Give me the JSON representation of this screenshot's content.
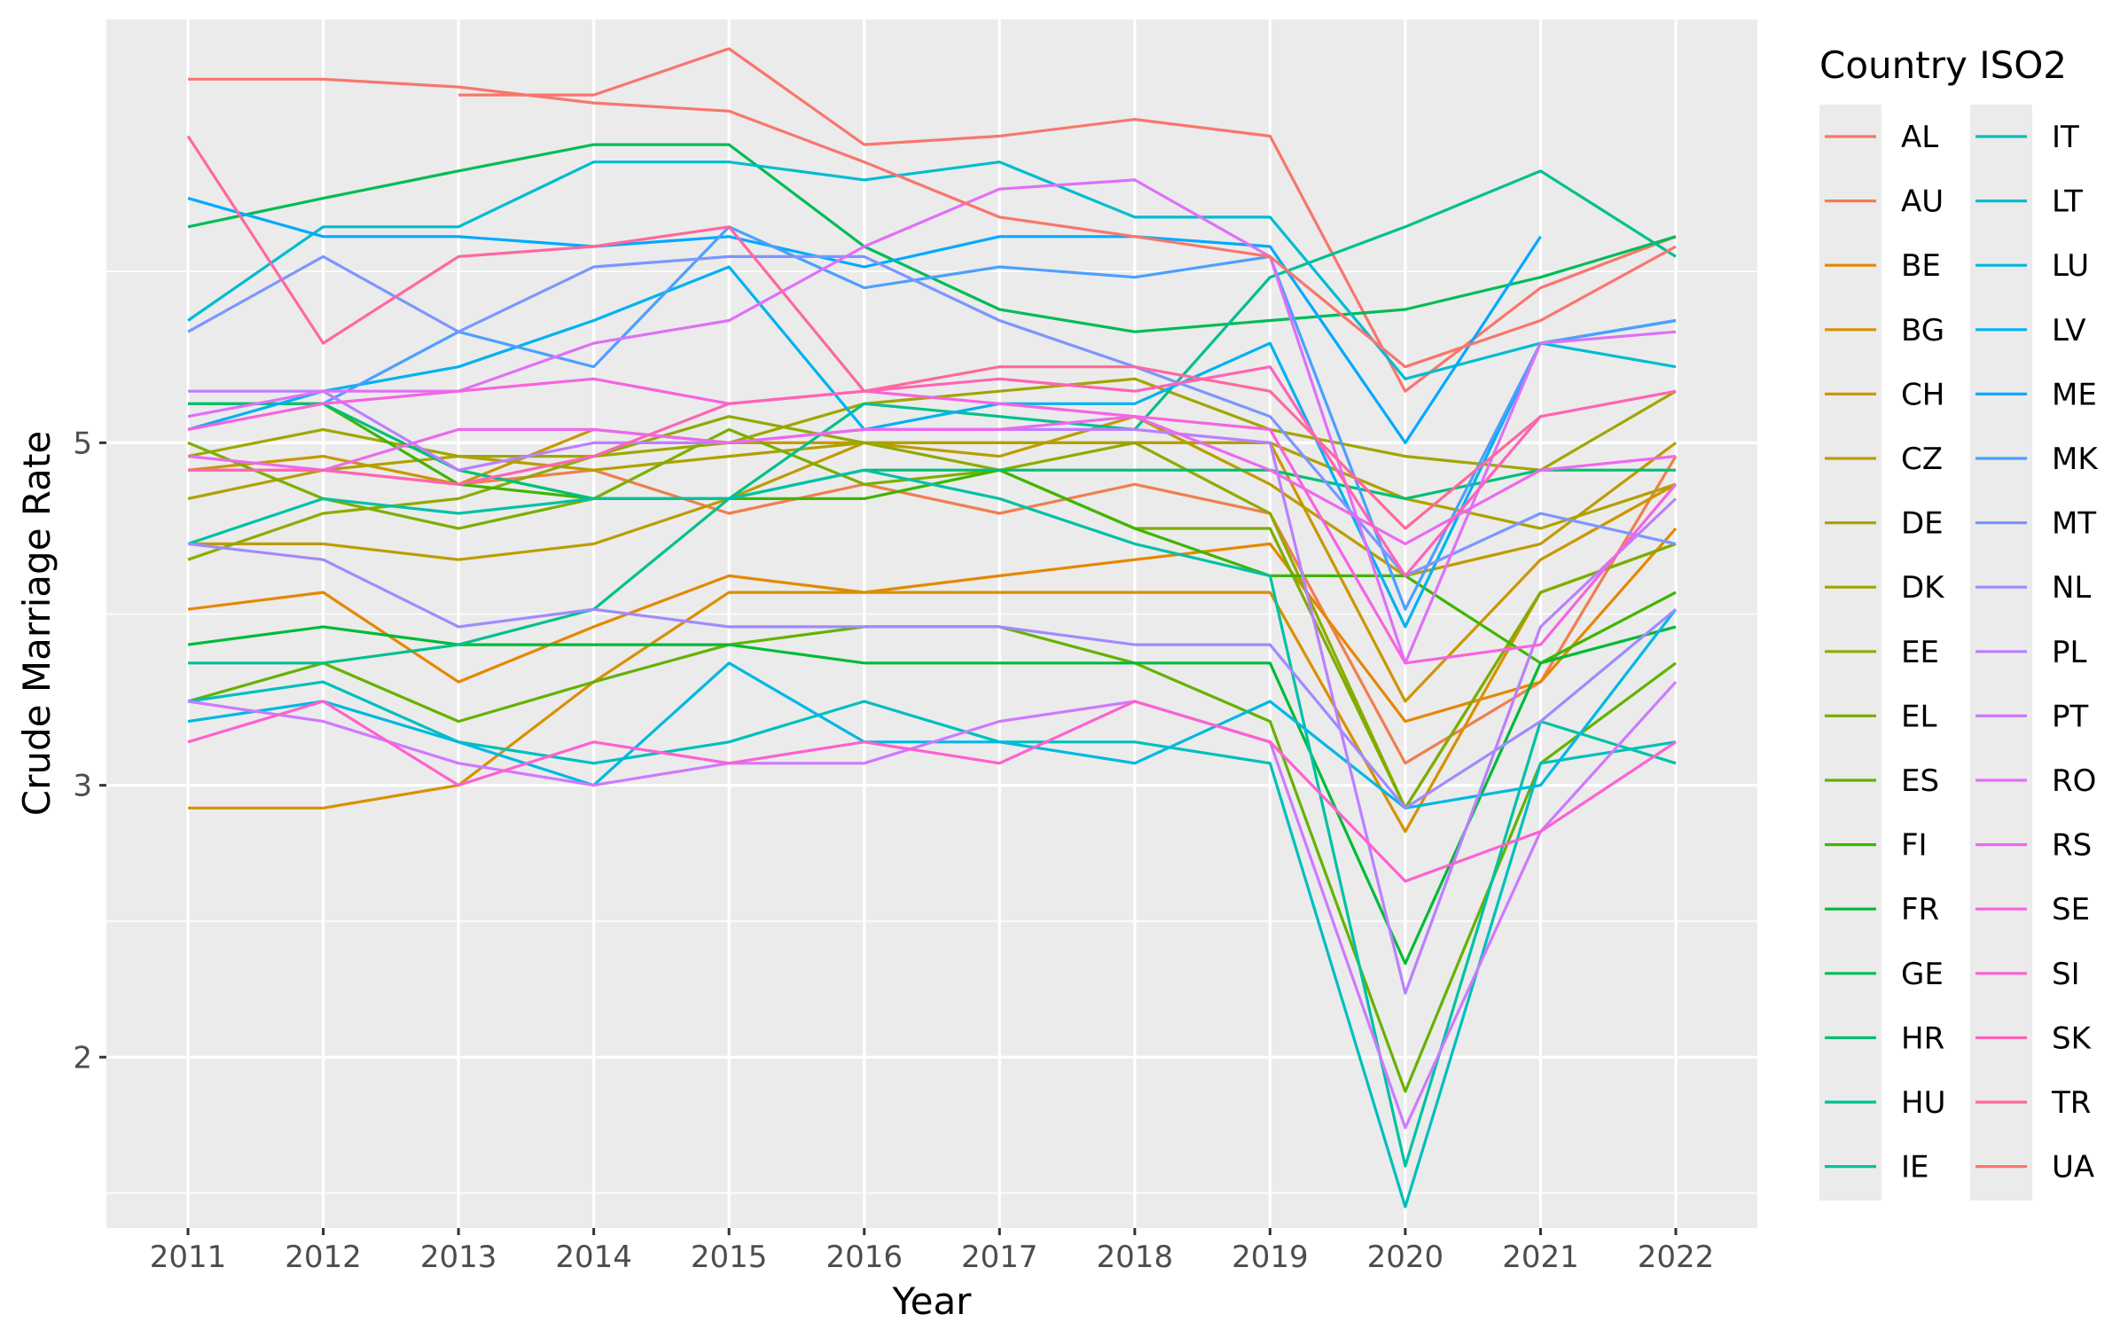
{
  "chart_data": {
    "type": "line",
    "title": "",
    "xlabel": "Year",
    "ylabel": "Crude Marriage Rate",
    "y_scale": "log",
    "ylim": [
      1.55,
      9.4
    ],
    "yticks": [
      2,
      3,
      5
    ],
    "grid": true,
    "legend_title": "Country ISO2",
    "legend_position": "right",
    "x": [
      2011,
      2012,
      2013,
      2014,
      2015,
      2016,
      2017,
      2018,
      2019,
      2020,
      2021,
      2022
    ],
    "series": [
      {
        "name": "AL",
        "color": "#F8766D",
        "values": [
          null,
          null,
          8.4,
          8.4,
          9.0,
          7.8,
          7.9,
          8.1,
          7.9,
          5.4,
          6.3,
          6.8
        ]
      },
      {
        "name": "AU",
        "color": "#F07E4F",
        "values": [
          4.8,
          4.8,
          4.7,
          4.8,
          4.5,
          4.7,
          4.5,
          4.7,
          4.5,
          3.1,
          3.5,
          4.9
        ]
      },
      {
        "name": "BE",
        "color": "#E58700",
        "values": [
          3.9,
          4.0,
          3.5,
          3.8,
          4.1,
          4.0,
          4.1,
          4.2,
          4.3,
          3.3,
          3.5,
          4.4
        ]
      },
      {
        "name": "BG",
        "color": "#D89000",
        "values": [
          2.9,
          2.9,
          3.0,
          3.5,
          4.0,
          4.0,
          4.0,
          4.0,
          4.0,
          2.8,
          4.0,
          4.3
        ]
      },
      {
        "name": "CH",
        "color": "#CB9600",
        "values": [
          4.8,
          4.9,
          4.7,
          5.1,
          5.0,
          5.0,
          5.0,
          5.0,
          5.0,
          3.4,
          4.2,
          4.7
        ]
      },
      {
        "name": "CZ",
        "color": "#BD9C00",
        "values": [
          4.3,
          4.3,
          4.2,
          4.3,
          4.6,
          5.0,
          4.9,
          5.2,
          4.7,
          4.1,
          4.3,
          5.0
        ]
      },
      {
        "name": "DE",
        "color": "#AFA100",
        "values": [
          4.6,
          4.8,
          4.9,
          4.8,
          4.9,
          5.0,
          5.0,
          5.0,
          5.0,
          4.6,
          4.4,
          4.7
        ]
      },
      {
        "name": "DK",
        "color": "#A0A600",
        "values": [
          4.9,
          5.1,
          4.9,
          4.9,
          5.0,
          5.3,
          5.4,
          5.5,
          5.1,
          4.9,
          4.8,
          5.4
        ]
      },
      {
        "name": "EE",
        "color": "#8FAA00",
        "values": [
          4.2,
          4.5,
          4.6,
          4.9,
          5.2,
          5.0,
          4.8,
          5.0,
          4.5,
          2.9,
          4.0,
          4.3
        ]
      },
      {
        "name": "EL",
        "color": "#7CAE00",
        "values": [
          5.0,
          4.6,
          4.4,
          4.6,
          5.1,
          4.7,
          4.8,
          4.4,
          4.4,
          2.9,
          4.0,
          4.3
        ]
      },
      {
        "name": "ES",
        "color": "#64B200",
        "values": [
          3.4,
          3.6,
          3.3,
          3.5,
          3.7,
          3.8,
          3.8,
          3.6,
          3.3,
          1.9,
          3.1,
          3.6
        ]
      },
      {
        "name": "FI",
        "color": "#3DB600",
        "values": [
          5.3,
          5.3,
          4.7,
          4.6,
          4.6,
          4.6,
          4.8,
          4.4,
          4.1,
          4.1,
          3.6,
          4.0
        ]
      },
      {
        "name": "FR",
        "color": "#00BA38",
        "values": [
          3.7,
          3.8,
          3.7,
          3.7,
          3.7,
          3.6,
          3.6,
          3.6,
          3.6,
          2.3,
          3.6,
          3.8
        ]
      },
      {
        "name": "GE",
        "color": "#00BC56",
        "values": [
          6.9,
          7.2,
          7.5,
          7.8,
          7.8,
          6.7,
          6.1,
          5.9,
          6.0,
          6.1,
          6.4,
          6.8
        ]
      },
      {
        "name": "HR",
        "color": "#00BF75",
        "values": [
          5.3,
          5.3,
          4.8,
          4.6,
          4.6,
          4.8,
          4.8,
          4.8,
          4.8,
          4.6,
          4.8,
          4.8
        ]
      },
      {
        "name": "HU",
        "color": "#00C08E",
        "values": [
          3.6,
          3.6,
          3.7,
          3.9,
          4.6,
          5.3,
          5.2,
          5.1,
          6.4,
          6.9,
          7.5,
          6.6
        ]
      },
      {
        "name": "IE",
        "color": "#00C1A5",
        "values": [
          4.3,
          4.6,
          4.5,
          4.6,
          4.6,
          4.8,
          4.6,
          4.3,
          4.1,
          1.7,
          3.3,
          3.1
        ]
      },
      {
        "name": "IT",
        "color": "#00BFBC",
        "values": [
          3.4,
          3.5,
          3.2,
          3.1,
          3.2,
          3.4,
          3.2,
          3.2,
          3.1,
          1.6,
          3.1,
          3.2
        ]
      },
      {
        "name": "LT",
        "color": "#00BCD0",
        "values": [
          6.0,
          6.9,
          6.9,
          7.6,
          7.6,
          7.4,
          7.6,
          7.0,
          7.0,
          5.5,
          5.8,
          5.6
        ]
      },
      {
        "name": "LU",
        "color": "#00B8E2",
        "values": [
          3.3,
          3.4,
          3.2,
          3.0,
          3.6,
          3.2,
          3.2,
          3.1,
          3.4,
          2.9,
          3.0,
          3.9
        ]
      },
      {
        "name": "LV",
        "color": "#00B2F2",
        "values": [
          5.1,
          5.4,
          5.6,
          6.0,
          6.5,
          5.1,
          5.3,
          5.3,
          5.8,
          3.8,
          5.8,
          6.0
        ]
      },
      {
        "name": "ME",
        "color": "#00A9FF",
        "values": [
          7.2,
          6.8,
          6.8,
          6.7,
          6.8,
          6.5,
          6.8,
          6.8,
          6.7,
          5.0,
          6.8,
          null
        ]
      },
      {
        "name": "MK",
        "color": "#4C9FFF",
        "values": [
          null,
          5.3,
          5.9,
          5.6,
          6.9,
          6.3,
          6.5,
          6.4,
          6.6,
          3.9,
          5.8,
          6.0
        ]
      },
      {
        "name": "MT",
        "color": "#7C96FF",
        "values": [
          5.9,
          6.6,
          5.9,
          6.5,
          6.6,
          6.6,
          6.0,
          5.6,
          5.2,
          4.1,
          4.5,
          4.3
        ]
      },
      {
        "name": "NL",
        "color": "#A08AFF",
        "values": [
          4.3,
          4.2,
          3.8,
          3.9,
          3.8,
          3.8,
          3.8,
          3.7,
          3.7,
          2.9,
          3.3,
          3.9
        ]
      },
      {
        "name": "PL",
        "color": "#BA80FF",
        "values": [
          5.4,
          5.4,
          4.8,
          5.0,
          5.0,
          5.1,
          5.1,
          5.1,
          5.0,
          2.2,
          3.8,
          4.6
        ]
      },
      {
        "name": "PT",
        "color": "#CE79FF",
        "values": [
          3.4,
          3.3,
          3.1,
          3.0,
          3.1,
          3.1,
          3.3,
          3.4,
          3.2,
          1.8,
          2.8,
          3.5
        ]
      },
      {
        "name": "RO",
        "color": "#DF70F8",
        "values": [
          5.2,
          5.4,
          5.4,
          5.8,
          6.0,
          6.7,
          7.3,
          7.4,
          6.6,
          3.6,
          5.8,
          5.9
        ]
      },
      {
        "name": "RS",
        "color": "#EC69EF",
        "values": [
          4.9,
          4.8,
          5.1,
          5.1,
          5.0,
          5.1,
          5.1,
          5.2,
          4.8,
          4.3,
          4.8,
          4.9
        ]
      },
      {
        "name": "SE",
        "color": "#F763E0",
        "values": [
          5.1,
          5.3,
          5.4,
          5.5,
          5.3,
          5.4,
          5.3,
          5.2,
          5.1,
          3.6,
          3.7,
          4.7
        ]
      },
      {
        "name": "SI",
        "color": "#FD61D0",
        "values": [
          3.2,
          3.4,
          3.0,
          3.2,
          3.1,
          3.2,
          3.1,
          3.4,
          3.2,
          2.6,
          2.8,
          3.2
        ]
      },
      {
        "name": "SK",
        "color": "#FF63B6",
        "values": [
          4.8,
          4.8,
          4.7,
          4.9,
          5.3,
          5.4,
          5.5,
          5.4,
          5.6,
          4.1,
          5.2,
          5.4
        ]
      },
      {
        "name": "TR",
        "color": "#FF689E",
        "values": [
          7.9,
          5.8,
          6.6,
          6.7,
          6.9,
          5.4,
          5.6,
          5.6,
          5.4,
          4.4,
          5.2,
          null
        ]
      },
      {
        "name": "UA",
        "color": "#F8766D",
        "values": [
          8.6,
          8.6,
          8.5,
          8.3,
          8.2,
          7.6,
          7.0,
          6.8,
          6.6,
          5.6,
          6.0,
          6.7
        ]
      }
    ]
  }
}
